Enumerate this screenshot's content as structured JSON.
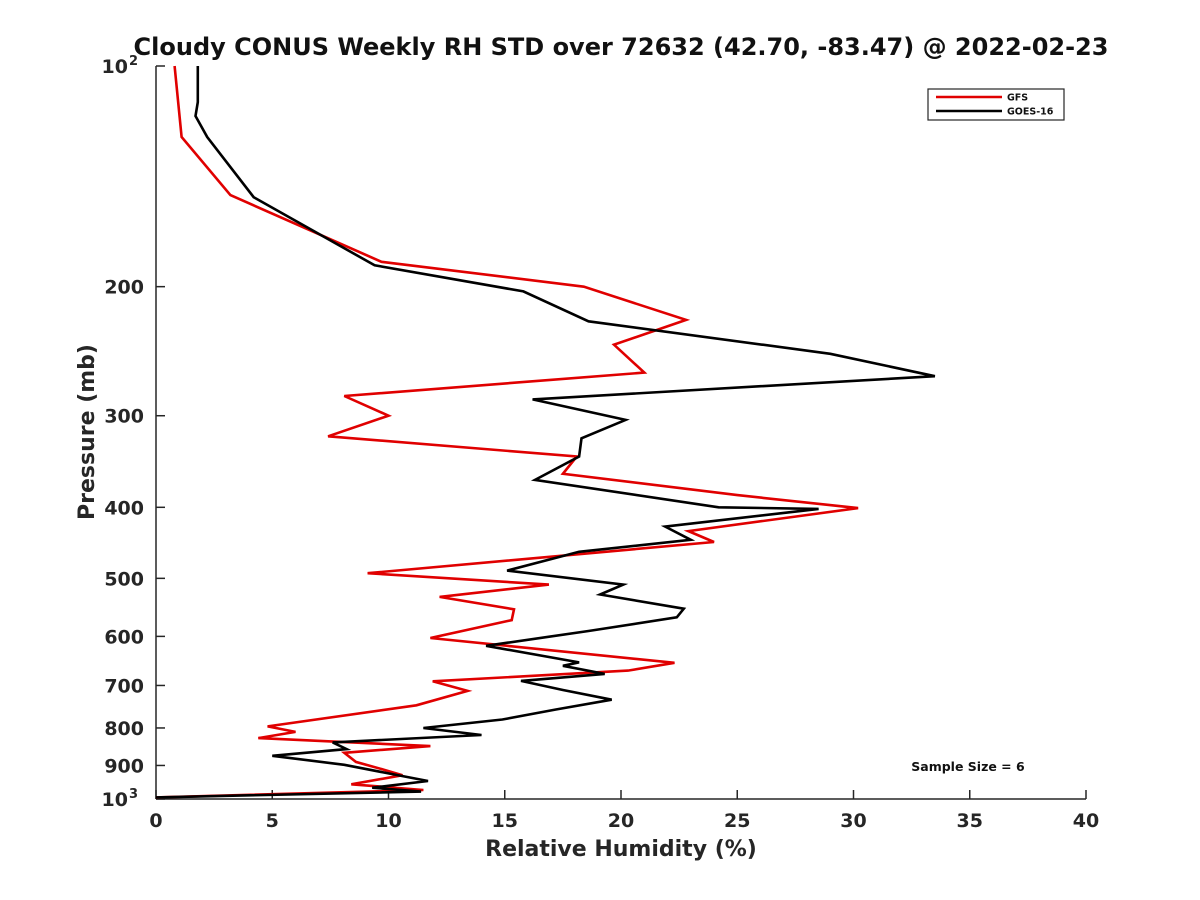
{
  "chart_data": {
    "type": "line",
    "title": "Cloudy CONUS Weekly RH STD over 72632 (42.70, -83.47) @ 2022-02-23",
    "xlabel": "Relative Humidity (%)",
    "ylabel": "Pressure (mb)",
    "xlim": [
      0,
      40
    ],
    "ylim": [
      100,
      1000
    ],
    "yscale": "log",
    "yreversed": true,
    "grid": false,
    "legend_position": "top-right",
    "x_ticks": [
      {
        "value": 0,
        "label": "0"
      },
      {
        "value": 5,
        "label": "5"
      },
      {
        "value": 10,
        "label": "10"
      },
      {
        "value": 15,
        "label": "15"
      },
      {
        "value": 20,
        "label": "20"
      },
      {
        "value": 25,
        "label": "25"
      },
      {
        "value": 30,
        "label": "30"
      },
      {
        "value": 35,
        "label": "35"
      },
      {
        "value": 40,
        "label": "40"
      }
    ],
    "y_ticks": [
      {
        "value": 100,
        "label": "10",
        "sup": "2"
      },
      {
        "value": 200,
        "label": "200"
      },
      {
        "value": 300,
        "label": "300"
      },
      {
        "value": 400,
        "label": "400"
      },
      {
        "value": 500,
        "label": "500"
      },
      {
        "value": 600,
        "label": "600"
      },
      {
        "value": 700,
        "label": "700"
      },
      {
        "value": 800,
        "label": "800"
      },
      {
        "value": 900,
        "label": "900"
      },
      {
        "value": 1000,
        "label": "10",
        "sup": "3"
      }
    ],
    "series": [
      {
        "name": "GFS",
        "color": "#e00000",
        "points": [
          [
            0.8,
            100
          ],
          [
            1.1,
            125
          ],
          [
            3.2,
            150
          ],
          [
            9.7,
            185
          ],
          [
            18.4,
            200
          ],
          [
            22.8,
            222
          ],
          [
            19.7,
            240
          ],
          [
            21.0,
            262
          ],
          [
            8.1,
            282
          ],
          [
            10.0,
            300
          ],
          [
            7.4,
            320
          ],
          [
            18.1,
            341
          ],
          [
            17.5,
            360
          ],
          [
            25.0,
            385
          ],
          [
            30.2,
            401
          ],
          [
            22.9,
            431
          ],
          [
            24.0,
            446
          ],
          [
            9.1,
            492
          ],
          [
            16.9,
            510
          ],
          [
            12.2,
            530
          ],
          [
            15.4,
            551
          ],
          [
            15.3,
            570
          ],
          [
            11.8,
            603
          ],
          [
            22.3,
            652
          ],
          [
            20.3,
            668
          ],
          [
            11.9,
            691
          ],
          [
            13.4,
            712
          ],
          [
            11.2,
            745
          ],
          [
            4.8,
            796
          ],
          [
            6.0,
            810
          ],
          [
            4.4,
            826
          ],
          [
            11.8,
            847
          ],
          [
            8.1,
            865
          ],
          [
            8.6,
            890
          ],
          [
            9.8,
            912
          ],
          [
            10.6,
            928
          ],
          [
            8.4,
            955
          ],
          [
            11.5,
            972
          ],
          [
            0.0,
            995
          ]
        ]
      },
      {
        "name": "GOES-16",
        "color": "#000000",
        "points": [
          [
            1.8,
            100
          ],
          [
            1.8,
            112
          ],
          [
            1.7,
            117
          ],
          [
            2.2,
            125
          ],
          [
            4.2,
            151
          ],
          [
            9.4,
            187
          ],
          [
            15.8,
            203
          ],
          [
            18.6,
            223
          ],
          [
            29.0,
            247
          ],
          [
            33.5,
            265
          ],
          [
            16.2,
            285
          ],
          [
            20.2,
            304
          ],
          [
            18.3,
            322
          ],
          [
            18.2,
            341
          ],
          [
            16.3,
            367
          ],
          [
            24.2,
            400
          ],
          [
            28.5,
            402
          ],
          [
            21.9,
            425
          ],
          [
            23.0,
            443
          ],
          [
            18.2,
            460
          ],
          [
            15.1,
            488
          ],
          [
            20.1,
            510
          ],
          [
            19.1,
            526
          ],
          [
            22.7,
            550
          ],
          [
            22.4,
            565
          ],
          [
            18.6,
            590
          ],
          [
            14.2,
            618
          ],
          [
            18.2,
            651
          ],
          [
            17.5,
            658
          ],
          [
            19.3,
            675
          ],
          [
            15.7,
            690
          ],
          [
            17.5,
            710
          ],
          [
            19.6,
            732
          ],
          [
            17.2,
            755
          ],
          [
            14.9,
            779
          ],
          [
            11.5,
            800
          ],
          [
            14.0,
            818
          ],
          [
            7.6,
            837
          ],
          [
            8.2,
            855
          ],
          [
            5.0,
            873
          ],
          [
            8.1,
            898
          ],
          [
            9.8,
            920
          ],
          [
            11.7,
            945
          ],
          [
            9.3,
            965
          ],
          [
            11.4,
            977
          ],
          [
            0.0,
            995
          ]
        ]
      }
    ],
    "annotations": [
      {
        "text": "Sample Size = 6"
      }
    ]
  }
}
